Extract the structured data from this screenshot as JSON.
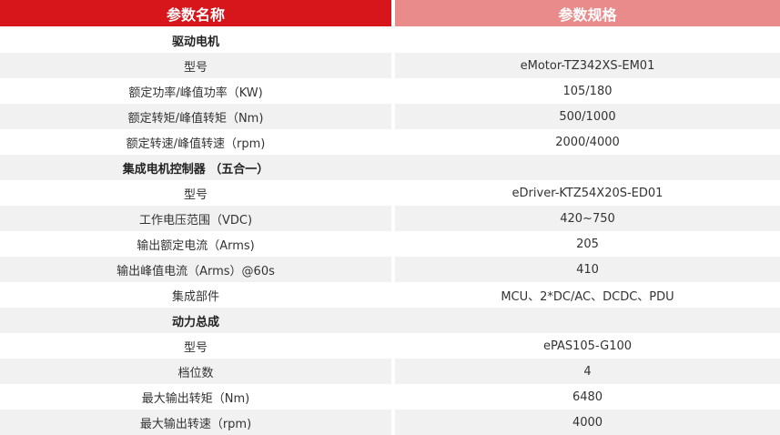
{
  "header": {
    "name_col": "参数名称",
    "spec_col": "参数规格"
  },
  "rows": [
    {
      "name": "驱动电机",
      "value": "",
      "section": true
    },
    {
      "name": "型号",
      "value": "eMotor-TZ342XS-EM01"
    },
    {
      "name": "额定功率/峰值功率（KW)",
      "value": "105/180"
    },
    {
      "name": "额定转矩/峰值转矩（Nm)",
      "value": "500/1000"
    },
    {
      "name": "额定转速/峰值转速（rpm)",
      "value": "2000/4000"
    },
    {
      "name": "集成电机控制器 （五合一）",
      "value": "",
      "section": true
    },
    {
      "name": "型号",
      "value": "eDriver-KTZ54X20S-ED01"
    },
    {
      "name": "工作电压范围（VDC)",
      "value": "420~750"
    },
    {
      "name": "输出额定电流（Arms)",
      "value": "205"
    },
    {
      "name": "输出峰值电流（Arms）@60s",
      "value": "410"
    },
    {
      "name": "集成部件",
      "value": "MCU、2*DC/AC、DCDC、PDU"
    },
    {
      "name": "动力总成",
      "value": "",
      "section": true
    },
    {
      "name": "型号",
      "value": "ePAS105-G100"
    },
    {
      "name": "档位数",
      "value": "4"
    },
    {
      "name": "最大输出转矩（Nm)",
      "value": "6480"
    },
    {
      "name": "最大输出转速（rpm)",
      "value": "4000"
    }
  ],
  "colors": {
    "header_left": "#d7161c",
    "header_right": "#e98a8b",
    "stripe": "#f1f1f1"
  }
}
